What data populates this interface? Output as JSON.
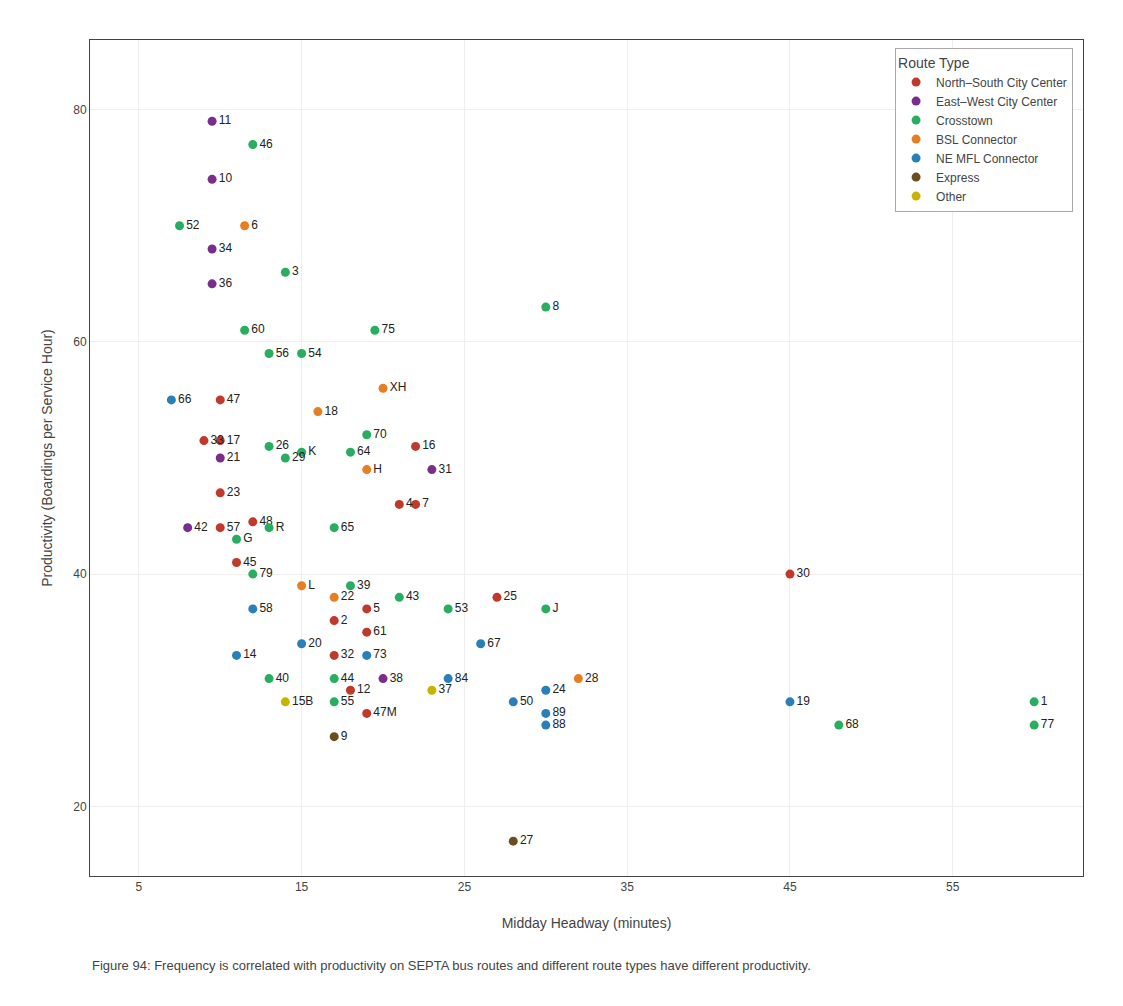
{
  "chart_data": {
    "type": "scatter",
    "xlabel": "Midday Headway (minutes)",
    "ylabel": "Productivity (Boardings per Service Hour)",
    "caption": "Figure 94: Frequency is correlated with productivity on SEPTA bus routes and different route types have different productivity.",
    "xlim": [
      2,
      63
    ],
    "ylim": [
      14,
      86
    ],
    "xticks": [
      5,
      15,
      25,
      35,
      45,
      55
    ],
    "yticks": [
      20,
      40,
      60,
      80
    ],
    "grid": true,
    "legend": "upper right",
    "legend_title": "Route Type",
    "marker": "circle",
    "series": [
      {
        "name": "North–South City Center",
        "color": "#c0392b",
        "x": [
          10,
          9,
          10,
          22,
          10,
          21,
          12,
          22,
          10,
          11,
          27,
          19,
          17,
          19,
          17,
          45,
          18,
          19
        ],
        "values": [
          55,
          51.5,
          51.5,
          51,
          47,
          46,
          44.5,
          46,
          44,
          41,
          38,
          37,
          36,
          35,
          33,
          40,
          30,
          28
        ],
        "labels": [
          "47",
          "33",
          "17",
          "16",
          "23",
          "4",
          "48",
          "7",
          "57",
          "45",
          "25",
          "5",
          "2",
          "61",
          "32",
          "30",
          "12",
          "47M"
        ]
      },
      {
        "name": "East–West City Center",
        "color": "#7b2d8b",
        "x": [
          9.5,
          9.5,
          9.5,
          9.5,
          10,
          23,
          8,
          20
        ],
        "values": [
          79,
          74,
          68,
          65,
          50,
          49,
          44,
          31
        ],
        "labels": [
          "11",
          "10",
          "34",
          "36",
          "21",
          "31",
          "42",
          "38"
        ]
      },
      {
        "name": "Crosstown",
        "color": "#27ae60",
        "x": [
          12,
          7.5,
          14,
          30,
          11.5,
          19.5,
          13,
          15,
          19,
          13,
          15,
          18,
          14,
          13,
          17,
          11,
          12,
          18,
          21,
          24,
          30,
          13,
          17,
          17,
          48,
          60,
          60
        ],
        "values": [
          77,
          70,
          66,
          63,
          61,
          61,
          59,
          59,
          52,
          51,
          50.5,
          50.5,
          50,
          44,
          44,
          43,
          40,
          39,
          38,
          37,
          37,
          31,
          31,
          29,
          27,
          29,
          27
        ],
        "labels": [
          "46",
          "52",
          "3",
          "8",
          "60",
          "75",
          "56",
          "54",
          "70",
          "26",
          "K",
          "64",
          "29",
          "R",
          "65",
          "G",
          "79",
          "39",
          "43",
          "53",
          "J",
          "40",
          "44",
          "55",
          "68",
          "1",
          "77"
        ]
      },
      {
        "name": "BSL Connector",
        "color": "#e67e22",
        "x": [
          11.5,
          20,
          16,
          19,
          15,
          17,
          32
        ],
        "values": [
          70,
          56,
          54,
          49,
          39,
          38,
          31
        ],
        "labels": [
          "6",
          "XH",
          "18",
          "H",
          "L",
          "22",
          "28"
        ]
      },
      {
        "name": "NE MFL Connector",
        "color": "#2980b9",
        "x": [
          7,
          12,
          15,
          11,
          26,
          19,
          24,
          30,
          28,
          30,
          30,
          45
        ],
        "values": [
          55,
          37,
          34,
          33,
          34,
          33,
          31,
          30,
          29,
          28,
          27,
          29
        ],
        "labels": [
          "66",
          "58",
          "20",
          "14",
          "67",
          "73",
          "84",
          "24",
          "50",
          "89",
          "88",
          "19"
        ]
      },
      {
        "name": "Express",
        "color": "#6d4c1f",
        "x": [
          17,
          28
        ],
        "values": [
          26,
          17
        ],
        "labels": [
          "9",
          "27"
        ]
      },
      {
        "name": "Other",
        "color": "#c8b400",
        "x": [
          23,
          14
        ],
        "values": [
          30,
          29
        ],
        "labels": [
          "37",
          "15B"
        ]
      }
    ]
  }
}
